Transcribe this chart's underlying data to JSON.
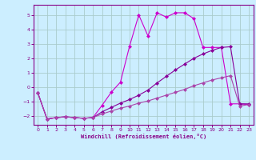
{
  "xlabel": "Windchill (Refroidissement éolien,°C)",
  "bg_color": "#cceeff",
  "grid_color": "#aacccc",
  "line_color1": "#cc00cc",
  "line_color2": "#880099",
  "line_color3": "#aa44aa",
  "xlim": [
    -0.5,
    23.5
  ],
  "ylim": [
    -2.6,
    5.7
  ],
  "xticks": [
    0,
    1,
    2,
    3,
    4,
    5,
    6,
    7,
    8,
    9,
    10,
    11,
    12,
    13,
    14,
    15,
    16,
    17,
    18,
    19,
    20,
    21,
    22,
    23
  ],
  "yticks": [
    -2,
    -1,
    0,
    1,
    2,
    3,
    4,
    5
  ],
  "s1_x": [
    0,
    1,
    2,
    3,
    4,
    5,
    6,
    7,
    8,
    9,
    10,
    11,
    12,
    13,
    14,
    15,
    16,
    17,
    18,
    19,
    20,
    21,
    22,
    23
  ],
  "s1_y": [
    -0.4,
    -2.2,
    -2.1,
    -2.05,
    -2.1,
    -2.15,
    -2.1,
    -1.25,
    -0.35,
    0.35,
    2.85,
    5.0,
    3.55,
    5.15,
    4.85,
    5.15,
    5.15,
    4.75,
    2.75,
    2.75,
    2.75,
    -1.15,
    -1.15,
    -1.2
  ],
  "s2_x": [
    0,
    1,
    2,
    3,
    4,
    5,
    6,
    7,
    8,
    9,
    10,
    11,
    12,
    13,
    14,
    15,
    16,
    17,
    18,
    19,
    20,
    21,
    22,
    23
  ],
  "s2_y": [
    -0.4,
    -2.2,
    -2.1,
    -2.05,
    -2.1,
    -2.15,
    -2.1,
    -1.7,
    -1.4,
    -1.1,
    -0.85,
    -0.55,
    -0.2,
    0.3,
    0.75,
    1.2,
    1.6,
    2.0,
    2.3,
    2.55,
    2.75,
    2.8,
    -1.15,
    -1.15
  ],
  "s3_x": [
    0,
    1,
    2,
    3,
    4,
    5,
    6,
    7,
    8,
    9,
    10,
    11,
    12,
    13,
    14,
    15,
    16,
    17,
    18,
    19,
    20,
    21,
    22,
    23
  ],
  "s3_y": [
    -0.4,
    -2.2,
    -2.1,
    -2.05,
    -2.1,
    -2.15,
    -2.1,
    -1.85,
    -1.65,
    -1.45,
    -1.3,
    -1.1,
    -0.95,
    -0.75,
    -0.55,
    -0.35,
    -0.15,
    0.1,
    0.3,
    0.5,
    0.65,
    0.8,
    -1.3,
    -1.2
  ]
}
